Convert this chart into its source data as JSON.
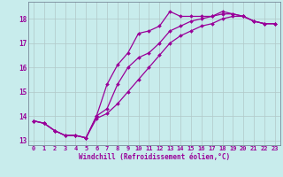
{
  "xlabel": "Windchill (Refroidissement éolien,°C)",
  "bg_color": "#c8ecec",
  "grid_color": "#b0c8c8",
  "line_color": "#990099",
  "marker": "D",
  "marker_size": 2.0,
  "line_width": 0.9,
  "xlim_min": -0.5,
  "xlim_max": 23.5,
  "ylim_min": 12.8,
  "ylim_max": 18.7,
  "xticks": [
    0,
    1,
    2,
    3,
    4,
    5,
    6,
    7,
    8,
    9,
    10,
    11,
    12,
    13,
    14,
    15,
    16,
    17,
    18,
    19,
    20,
    21,
    22,
    23
  ],
  "yticks": [
    13,
    14,
    15,
    16,
    17,
    18
  ],
  "series1_x": [
    0,
    1,
    2,
    3,
    4,
    5,
    6,
    7,
    8,
    9,
    10,
    11,
    12,
    13,
    14,
    15,
    16,
    17,
    18,
    19,
    20,
    21,
    22,
    23
  ],
  "series1_y": [
    13.8,
    13.7,
    13.4,
    13.2,
    13.2,
    13.1,
    14.0,
    15.3,
    16.1,
    16.6,
    17.4,
    17.5,
    17.7,
    18.3,
    18.1,
    18.1,
    18.1,
    18.1,
    18.3,
    18.2,
    18.1,
    17.9,
    17.8,
    17.8
  ],
  "series2_x": [
    0,
    1,
    2,
    3,
    4,
    5,
    6,
    7,
    8,
    9,
    10,
    11,
    12,
    13,
    14,
    15,
    16,
    17,
    18,
    19,
    20,
    21,
    22,
    23
  ],
  "series2_y": [
    13.8,
    13.7,
    13.4,
    13.2,
    13.2,
    13.1,
    14.0,
    14.3,
    15.3,
    16.0,
    16.4,
    16.6,
    17.0,
    17.5,
    17.7,
    17.9,
    18.0,
    18.1,
    18.2,
    18.2,
    18.1,
    17.9,
    17.8,
    17.8
  ],
  "series3_x": [
    0,
    1,
    2,
    3,
    4,
    5,
    6,
    7,
    8,
    9,
    10,
    11,
    12,
    13,
    14,
    15,
    16,
    17,
    18,
    19,
    20,
    21,
    22,
    23
  ],
  "series3_y": [
    13.8,
    13.7,
    13.4,
    13.2,
    13.2,
    13.1,
    13.9,
    14.1,
    14.5,
    15.0,
    15.5,
    16.0,
    16.5,
    17.0,
    17.3,
    17.5,
    17.7,
    17.8,
    18.0,
    18.1,
    18.1,
    17.9,
    17.8,
    17.8
  ],
  "tick_fontsize": 5.0,
  "xlabel_fontsize": 5.5
}
